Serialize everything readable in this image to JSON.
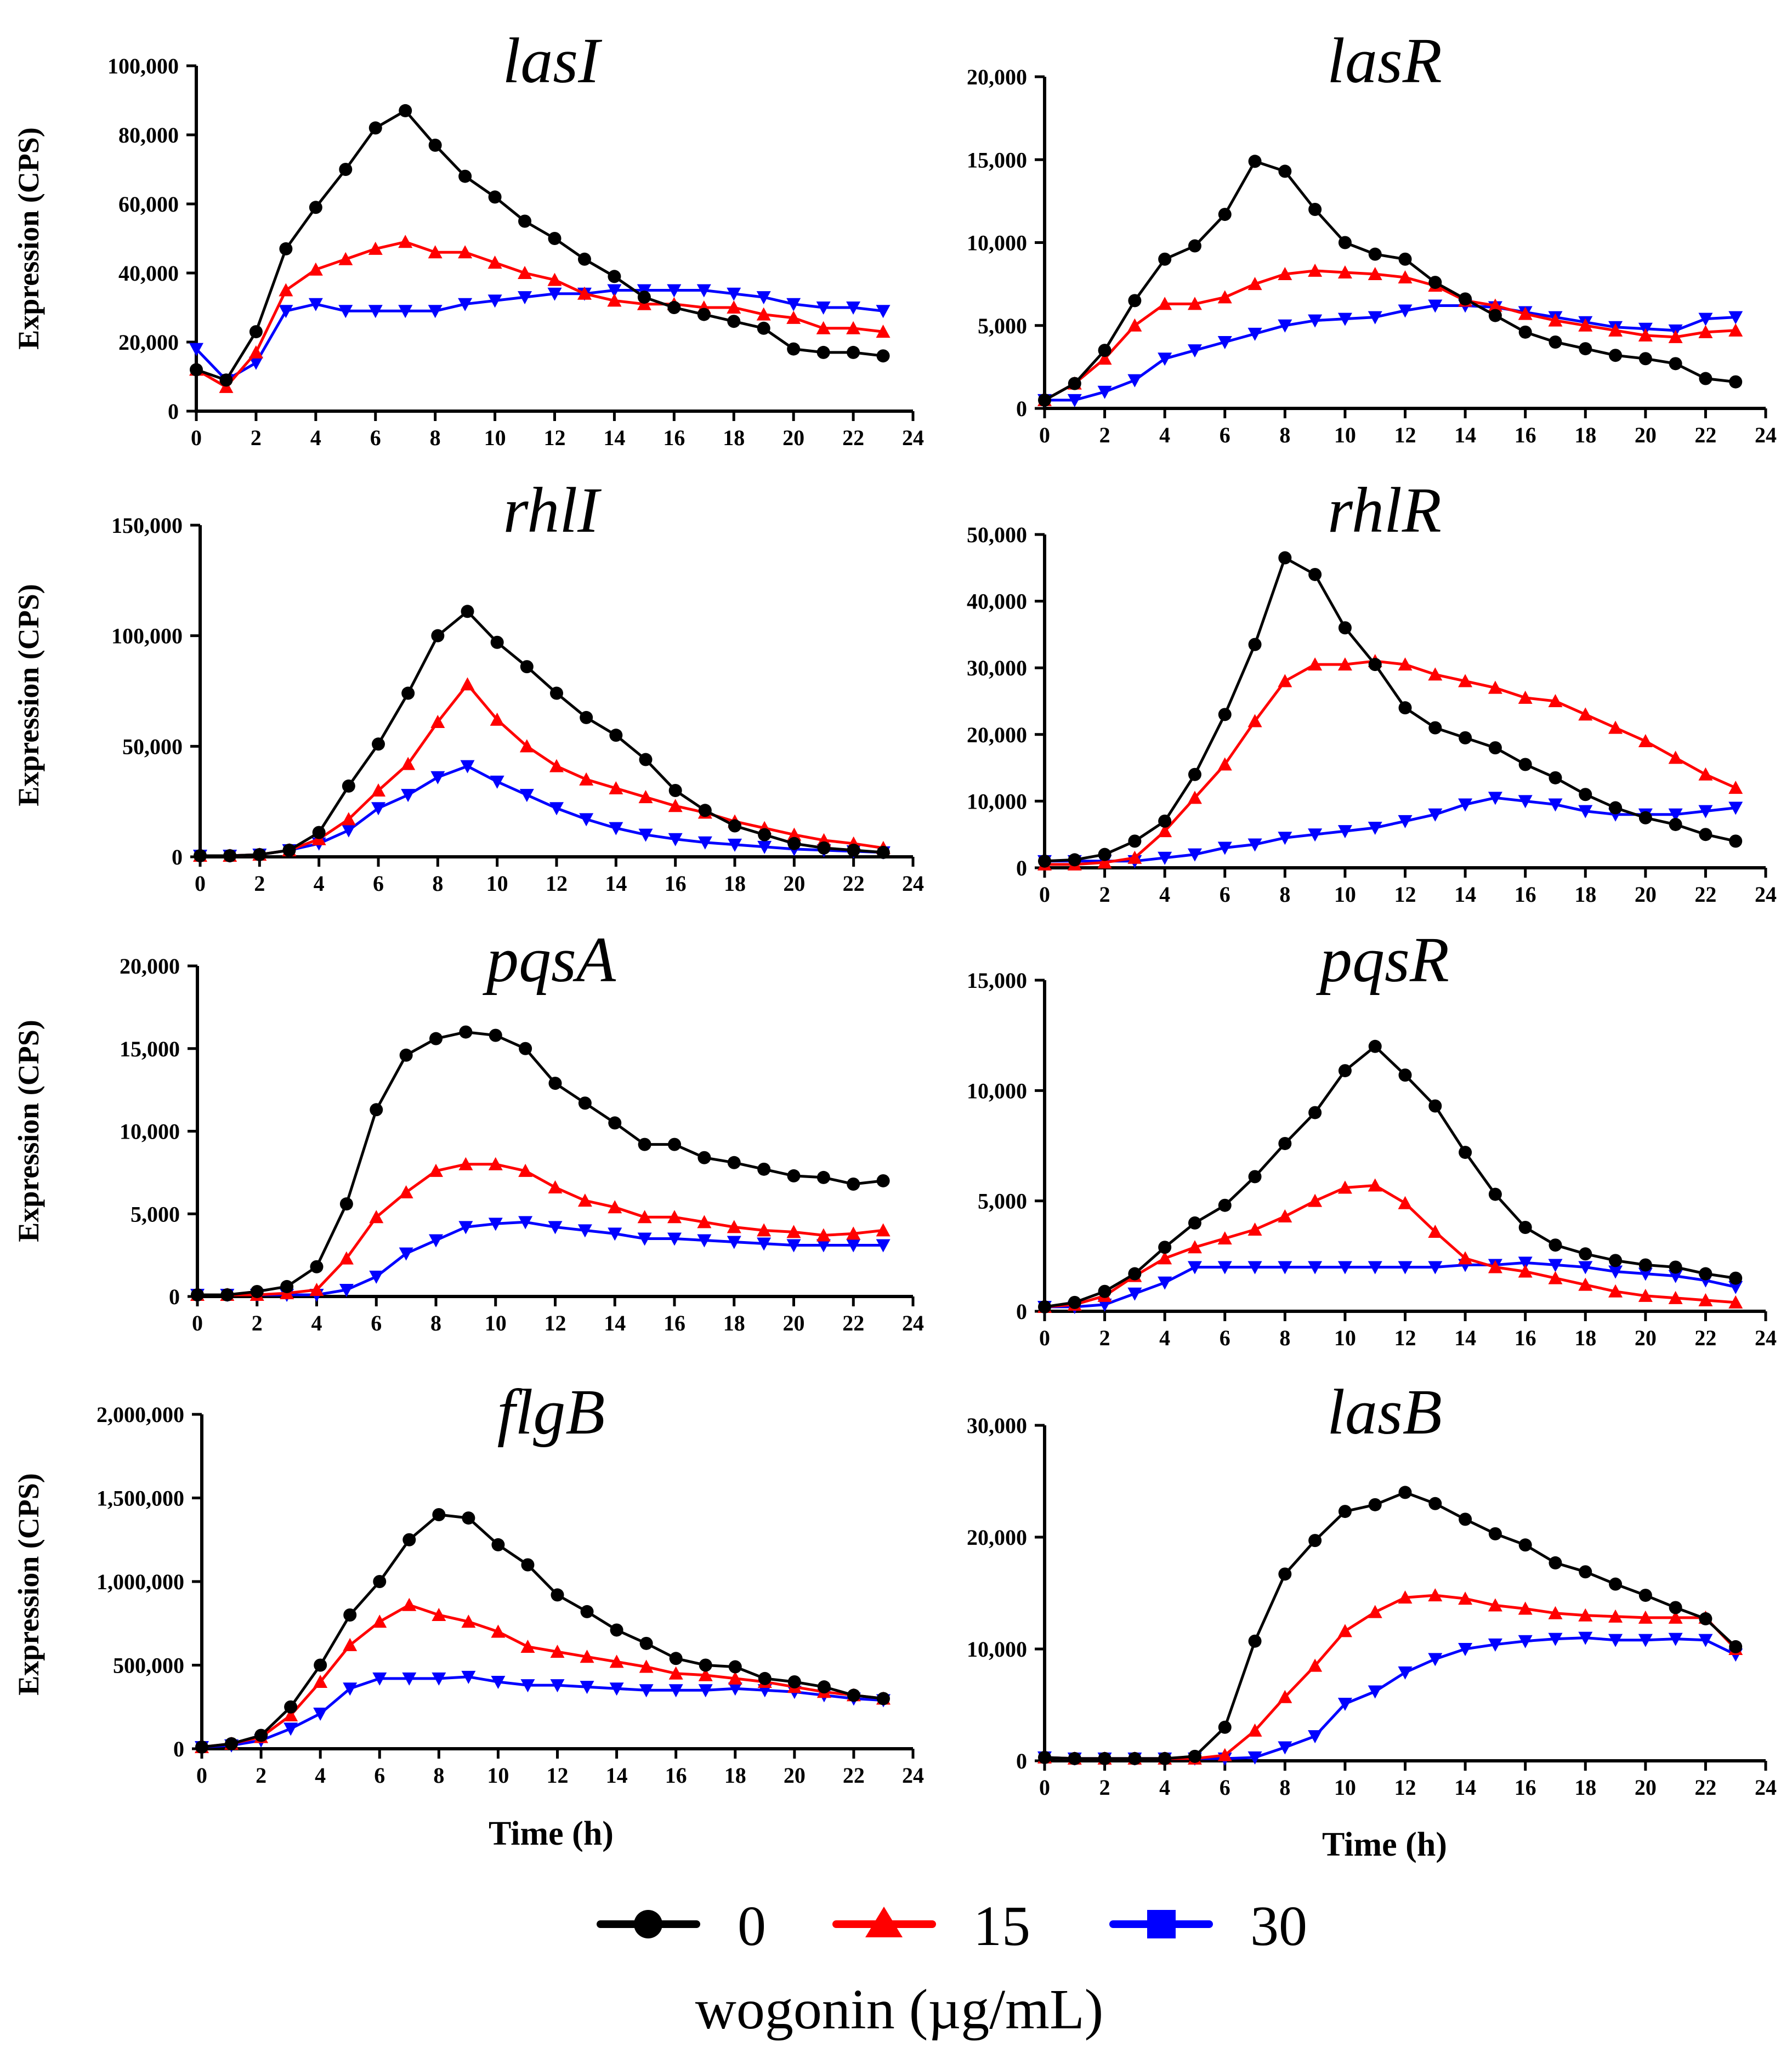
{
  "chart_data": [
    {
      "type": "line",
      "title": "lasI",
      "xlabel": "",
      "ylabel": "Expression (CPS)",
      "xlim": [
        0,
        24
      ],
      "ylim": [
        0,
        100000
      ],
      "yticks": [
        "0",
        "20,000",
        "40,000",
        "60,000",
        "80,000",
        "100,000"
      ],
      "x": [
        0,
        1,
        2,
        3,
        4,
        5,
        6,
        7,
        8,
        9,
        10,
        11,
        12,
        13,
        14,
        15,
        16,
        17,
        18,
        19,
        20,
        21,
        22,
        23
      ],
      "series": [
        {
          "name": "0",
          "values": [
            12000,
            9000,
            23000,
            47000,
            59000,
            70000,
            82000,
            87000,
            77000,
            68000,
            62000,
            55000,
            50000,
            44000,
            39000,
            33000,
            30000,
            28000,
            26000,
            24000,
            18000,
            17000,
            17000,
            16000
          ]
        },
        {
          "name": "15",
          "values": [
            12000,
            7000,
            17000,
            35000,
            41000,
            44000,
            47000,
            49000,
            46000,
            46000,
            43000,
            40000,
            38000,
            34000,
            32000,
            31000,
            31000,
            30000,
            30000,
            28000,
            27000,
            24000,
            24000,
            23000
          ]
        },
        {
          "name": "30",
          "values": [
            18000,
            9000,
            14000,
            29000,
            31000,
            29000,
            29000,
            29000,
            29000,
            31000,
            32000,
            33000,
            34000,
            34000,
            35000,
            35000,
            35000,
            35000,
            34000,
            33000,
            31000,
            30000,
            30000,
            29000
          ]
        }
      ]
    },
    {
      "type": "line",
      "title": "lasR",
      "xlabel": "",
      "ylabel": "",
      "xlim": [
        0,
        24
      ],
      "ylim": [
        0,
        20000
      ],
      "yticks": [
        "0",
        "5,000",
        "10,000",
        "15,000",
        "20,000"
      ],
      "x": [
        0,
        1,
        2,
        3,
        4,
        5,
        6,
        7,
        8,
        9,
        10,
        11,
        12,
        13,
        14,
        15,
        16,
        17,
        18,
        19,
        20,
        21,
        22,
        23
      ],
      "series": [
        {
          "name": "0",
          "values": [
            500,
            1500,
            3500,
            6500,
            9000,
            9800,
            11700,
            14900,
            14300,
            12000,
            10000,
            9300,
            9000,
            7600,
            6600,
            5600,
            4600,
            4000,
            3600,
            3200,
            3000,
            2700,
            1800,
            1600
          ]
        },
        {
          "name": "15",
          "values": [
            500,
            1500,
            3000,
            5000,
            6300,
            6300,
            6700,
            7500,
            8100,
            8300,
            8200,
            8100,
            7900,
            7400,
            6500,
            6200,
            5700,
            5300,
            5000,
            4700,
            4400,
            4300,
            4600,
            4700
          ]
        },
        {
          "name": "30",
          "values": [
            500,
            500,
            1000,
            1700,
            3000,
            3500,
            4000,
            4500,
            5000,
            5300,
            5400,
            5500,
            5900,
            6200,
            6200,
            6100,
            5800,
            5500,
            5200,
            4900,
            4800,
            4700,
            5400,
            5500
          ]
        }
      ]
    },
    {
      "type": "line",
      "title": "rhlI",
      "xlabel": "",
      "ylabel": "Expression (CPS)",
      "xlim": [
        0,
        24
      ],
      "ylim": [
        0,
        150000
      ],
      "yticks": [
        "0",
        "50,000",
        "100,000",
        "150,000"
      ],
      "x": [
        0,
        1,
        2,
        3,
        4,
        5,
        6,
        7,
        8,
        9,
        10,
        11,
        12,
        13,
        14,
        15,
        16,
        17,
        18,
        19,
        20,
        21,
        22,
        23
      ],
      "series": [
        {
          "name": "0",
          "values": [
            500,
            500,
            1000,
            3000,
            11000,
            32000,
            51000,
            74000,
            100000,
            111000,
            97000,
            86000,
            74000,
            63000,
            55000,
            44000,
            30000,
            21000,
            14000,
            10000,
            6000,
            4000,
            3000,
            2000
          ]
        },
        {
          "name": "15",
          "values": [
            500,
            500,
            1000,
            3000,
            8000,
            17000,
            30000,
            42000,
            61000,
            78000,
            62000,
            50000,
            41000,
            35000,
            31000,
            27000,
            23000,
            20000,
            16000,
            13000,
            10000,
            7500,
            6000,
            4000
          ]
        },
        {
          "name": "30",
          "values": [
            500,
            500,
            1000,
            3000,
            6000,
            12000,
            22000,
            28000,
            36000,
            41000,
            34000,
            28000,
            22000,
            17000,
            13000,
            10000,
            8000,
            6500,
            5500,
            4500,
            3500,
            3000,
            2500,
            2000
          ]
        }
      ]
    },
    {
      "type": "line",
      "title": "rhlR",
      "xlabel": "",
      "ylabel": "",
      "xlim": [
        0,
        24
      ],
      "ylim": [
        0,
        50000
      ],
      "yticks": [
        "0",
        "10,000",
        "20,000",
        "30,000",
        "40,000",
        "50,000"
      ],
      "x": [
        0,
        1,
        2,
        3,
        4,
        5,
        6,
        7,
        8,
        9,
        10,
        11,
        12,
        13,
        14,
        15,
        16,
        17,
        18,
        19,
        20,
        21,
        22,
        23
      ],
      "series": [
        {
          "name": "0",
          "values": [
            1000,
            1200,
            2000,
            4000,
            7000,
            14000,
            23000,
            33500,
            46500,
            44000,
            36000,
            30500,
            24000,
            21000,
            19500,
            18000,
            15500,
            13500,
            11000,
            9000,
            7500,
            6500,
            5000,
            4000
          ]
        },
        {
          "name": "15",
          "values": [
            500,
            500,
            800,
            1500,
            5500,
            10500,
            15500,
            22000,
            28000,
            30500,
            30500,
            31000,
            30500,
            29000,
            28000,
            27000,
            25500,
            25000,
            23000,
            21000,
            19000,
            16500,
            14000,
            12000
          ]
        },
        {
          "name": "30",
          "values": [
            1000,
            1000,
            1000,
            1000,
            1500,
            2000,
            3000,
            3500,
            4500,
            5000,
            5500,
            6000,
            7000,
            8000,
            9500,
            10500,
            10000,
            9500,
            8500,
            8000,
            8000,
            8000,
            8500,
            9000
          ]
        }
      ]
    },
    {
      "type": "line",
      "title": "pqsA",
      "xlabel": "",
      "ylabel": "Expression (CPS)",
      "xlim": [
        0,
        24
      ],
      "ylim": [
        0,
        20000
      ],
      "yticks": [
        "0",
        "5,000",
        "10,000",
        "15,000",
        "20,000"
      ],
      "x": [
        0,
        1,
        2,
        3,
        4,
        5,
        6,
        7,
        8,
        9,
        10,
        11,
        12,
        13,
        14,
        15,
        16,
        17,
        18,
        19,
        20,
        21,
        22,
        23
      ],
      "series": [
        {
          "name": "0",
          "values": [
            100,
            100,
            300,
            600,
            1800,
            5600,
            11300,
            14600,
            15600,
            16000,
            15800,
            15000,
            12900,
            11700,
            10500,
            9200,
            9200,
            8400,
            8100,
            7700,
            7300,
            7200,
            6800,
            7000
          ]
        },
        {
          "name": "15",
          "values": [
            100,
            100,
            100,
            200,
            400,
            2300,
            4800,
            6300,
            7600,
            8000,
            8000,
            7600,
            6600,
            5800,
            5400,
            4800,
            4800,
            4500,
            4200,
            4000,
            3900,
            3700,
            3800,
            4000
          ]
        },
        {
          "name": "30",
          "values": [
            100,
            100,
            100,
            100,
            100,
            400,
            1200,
            2600,
            3400,
            4200,
            4400,
            4500,
            4200,
            4000,
            3800,
            3500,
            3500,
            3400,
            3300,
            3200,
            3100,
            3100,
            3100,
            3100
          ]
        }
      ]
    },
    {
      "type": "line",
      "title": "pqsR",
      "xlabel": "",
      "ylabel": "",
      "xlim": [
        0,
        24
      ],
      "ylim": [
        0,
        15000
      ],
      "yticks": [
        "0",
        "5,000",
        "10,000",
        "15,000"
      ],
      "x": [
        0,
        1,
        2,
        3,
        4,
        5,
        6,
        7,
        8,
        9,
        10,
        11,
        12,
        13,
        14,
        15,
        16,
        17,
        18,
        19,
        20,
        21,
        22,
        23
      ],
      "series": [
        {
          "name": "0",
          "values": [
            200,
            400,
            900,
            1700,
            2900,
            4000,
            4800,
            6100,
            7600,
            9000,
            10900,
            12000,
            10700,
            9300,
            7200,
            5300,
            3800,
            3000,
            2600,
            2300,
            2100,
            2000,
            1700,
            1500
          ]
        },
        {
          "name": "15",
          "values": [
            200,
            300,
            700,
            1600,
            2400,
            2900,
            3300,
            3700,
            4300,
            5000,
            5600,
            5700,
            4900,
            3600,
            2400,
            2000,
            1800,
            1500,
            1200,
            900,
            700,
            600,
            500,
            400
          ]
        },
        {
          "name": "30",
          "values": [
            200,
            200,
            300,
            800,
            1300,
            2000,
            2000,
            2000,
            2000,
            2000,
            2000,
            2000,
            2000,
            2000,
            2100,
            2100,
            2200,
            2100,
            2000,
            1800,
            1700,
            1600,
            1400,
            1100
          ]
        }
      ]
    },
    {
      "type": "line",
      "title": "flgB",
      "xlabel": "Time (h)",
      "ylabel": "Expression (CPS)",
      "xlim": [
        0,
        24
      ],
      "ylim": [
        0,
        2000000
      ],
      "yticks": [
        "0",
        "500,000",
        "1,000,000",
        "1,500,000",
        "2,000,000"
      ],
      "x": [
        0,
        1,
        2,
        3,
        4,
        5,
        6,
        7,
        8,
        9,
        10,
        11,
        12,
        13,
        14,
        15,
        16,
        17,
        18,
        19,
        20,
        21,
        22,
        23
      ],
      "series": [
        {
          "name": "0",
          "values": [
            10000,
            30000,
            80000,
            250000,
            500000,
            800000,
            1000000,
            1250000,
            1400000,
            1380000,
            1220000,
            1100000,
            920000,
            820000,
            710000,
            630000,
            540000,
            500000,
            490000,
            420000,
            400000,
            370000,
            320000,
            300000
          ]
        },
        {
          "name": "15",
          "values": [
            10000,
            30000,
            70000,
            200000,
            400000,
            620000,
            760000,
            860000,
            800000,
            760000,
            700000,
            610000,
            580000,
            550000,
            520000,
            490000,
            450000,
            440000,
            420000,
            400000,
            370000,
            340000,
            320000,
            300000
          ]
        },
        {
          "name": "30",
          "values": [
            10000,
            20000,
            50000,
            120000,
            210000,
            360000,
            420000,
            420000,
            420000,
            430000,
            400000,
            380000,
            380000,
            370000,
            360000,
            350000,
            350000,
            350000,
            360000,
            350000,
            340000,
            320000,
            300000,
            290000
          ]
        }
      ]
    },
    {
      "type": "line",
      "title": "lasB",
      "xlabel": "Time (h)",
      "ylabel": "",
      "xlim": [
        0,
        24
      ],
      "ylim": [
        0,
        30000
      ],
      "yticks": [
        "0",
        "10,000",
        "20,000",
        "30,000"
      ],
      "x": [
        0,
        1,
        2,
        3,
        4,
        5,
        6,
        7,
        8,
        9,
        10,
        11,
        12,
        13,
        14,
        15,
        16,
        17,
        18,
        19,
        20,
        21,
        22,
        23
      ],
      "series": [
        {
          "name": "0",
          "values": [
            300,
            200,
            200,
            200,
            200,
            400,
            3000,
            10700,
            16700,
            19700,
            22300,
            22900,
            24000,
            23000,
            21600,
            20300,
            19300,
            17700,
            16900,
            15800,
            14800,
            13700,
            12700,
            10200
          ]
        },
        {
          "name": "15",
          "values": [
            300,
            200,
            200,
            200,
            200,
            200,
            500,
            2700,
            5700,
            8500,
            11600,
            13300,
            14600,
            14800,
            14500,
            13900,
            13600,
            13200,
            13000,
            12900,
            12800,
            12800,
            12800,
            10000
          ]
        },
        {
          "name": "30",
          "values": [
            300,
            200,
            200,
            200,
            200,
            200,
            200,
            300,
            1200,
            2200,
            5100,
            6200,
            7900,
            9100,
            10000,
            10400,
            10700,
            10900,
            11000,
            10800,
            10800,
            10900,
            10800,
            9500
          ]
        }
      ]
    }
  ],
  "legend": {
    "items": [
      {
        "label": "0",
        "color": "#000000",
        "marker": "circle"
      },
      {
        "label": "15",
        "color": "#ff0000",
        "marker": "triangle-up"
      },
      {
        "label": "30",
        "color": "#0000ff",
        "marker": "square"
      }
    ],
    "caption": "wogonin (µg/mL)"
  },
  "colors": {
    "0": "#000000",
    "15": "#ff0000",
    "30": "#0000ff"
  }
}
